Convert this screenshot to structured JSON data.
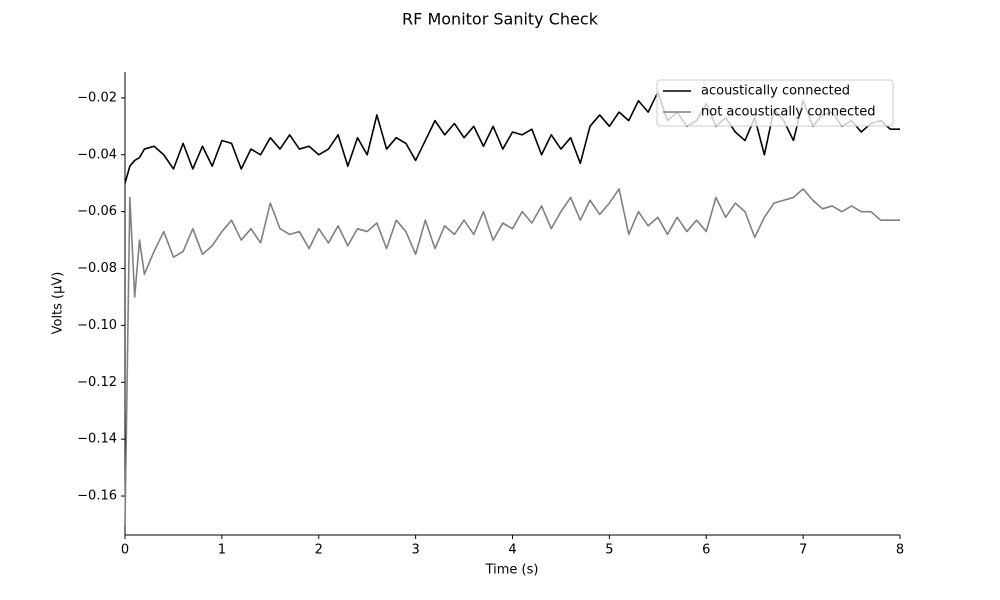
{
  "chart_data": {
    "type": "line",
    "title": "RF Monitor Sanity Check",
    "xlabel": "Time (s)",
    "ylabel": "Volts (μV)",
    "x": [
      0,
      0.05,
      0.1,
      0.15,
      0.2,
      0.3,
      0.4,
      0.5,
      0.6,
      0.7,
      0.8,
      0.9,
      1.0,
      1.1,
      1.2,
      1.3,
      1.4,
      1.5,
      1.6,
      1.7,
      1.8,
      1.9,
      2.0,
      2.1,
      2.2,
      2.3,
      2.4,
      2.5,
      2.6,
      2.7,
      2.8,
      2.9,
      3.0,
      3.1,
      3.2,
      3.3,
      3.4,
      3.5,
      3.6,
      3.7,
      3.8,
      3.9,
      4.0,
      4.1,
      4.2,
      4.3,
      4.4,
      4.5,
      4.6,
      4.7,
      4.8,
      4.9,
      5.0,
      5.1,
      5.2,
      5.3,
      5.4,
      5.5,
      5.6,
      5.7,
      5.8,
      5.9,
      6.0,
      6.1,
      6.2,
      6.3,
      6.4,
      6.5,
      6.6,
      6.7,
      6.8,
      6.9,
      7.0,
      7.1,
      7.2,
      7.3,
      7.4,
      7.5,
      7.6,
      7.7,
      7.8,
      7.9,
      8.0
    ],
    "series": [
      {
        "name": "acoustically connected",
        "color": "#000000",
        "values": [
          -0.05,
          -0.044,
          -0.042,
          -0.041,
          -0.038,
          -0.037,
          -0.04,
          -0.045,
          -0.036,
          -0.045,
          -0.037,
          -0.044,
          -0.035,
          -0.036,
          -0.045,
          -0.038,
          -0.04,
          -0.034,
          -0.038,
          -0.033,
          -0.038,
          -0.037,
          -0.04,
          -0.038,
          -0.033,
          -0.044,
          -0.034,
          -0.04,
          -0.026,
          -0.038,
          -0.034,
          -0.036,
          -0.042,
          -0.035,
          -0.028,
          -0.033,
          -0.029,
          -0.034,
          -0.03,
          -0.037,
          -0.03,
          -0.038,
          -0.032,
          -0.033,
          -0.031,
          -0.04,
          -0.033,
          -0.038,
          -0.034,
          -0.043,
          -0.03,
          -0.026,
          -0.03,
          -0.025,
          -0.028,
          -0.021,
          -0.025,
          -0.018,
          -0.028,
          -0.025,
          -0.03,
          -0.028,
          -0.022,
          -0.03,
          -0.027,
          -0.032,
          -0.035,
          -0.027,
          -0.04,
          -0.024,
          -0.028,
          -0.035,
          -0.021,
          -0.03,
          -0.026,
          -0.025,
          -0.03,
          -0.028,
          -0.032,
          -0.029,
          -0.028,
          -0.031,
          -0.031
        ]
      },
      {
        "name": "not acoustically connected",
        "color": "#808080",
        "values": [
          -0.17,
          -0.055,
          -0.09,
          -0.07,
          -0.082,
          -0.074,
          -0.067,
          -0.076,
          -0.074,
          -0.066,
          -0.075,
          -0.072,
          -0.067,
          -0.063,
          -0.07,
          -0.066,
          -0.071,
          -0.057,
          -0.066,
          -0.068,
          -0.067,
          -0.073,
          -0.066,
          -0.071,
          -0.065,
          -0.072,
          -0.066,
          -0.067,
          -0.064,
          -0.073,
          -0.063,
          -0.067,
          -0.075,
          -0.063,
          -0.073,
          -0.065,
          -0.068,
          -0.063,
          -0.068,
          -0.06,
          -0.07,
          -0.064,
          -0.066,
          -0.06,
          -0.064,
          -0.058,
          -0.066,
          -0.06,
          -0.055,
          -0.063,
          -0.056,
          -0.061,
          -0.057,
          -0.052,
          -0.068,
          -0.06,
          -0.065,
          -0.062,
          -0.068,
          -0.062,
          -0.067,
          -0.063,
          -0.067,
          -0.055,
          -0.062,
          -0.057,
          -0.06,
          -0.069,
          -0.062,
          -0.057,
          -0.056,
          -0.055,
          -0.052,
          -0.056,
          -0.059,
          -0.058,
          -0.06,
          -0.058,
          -0.06,
          -0.06,
          -0.063,
          -0.063,
          -0.063
        ]
      }
    ],
    "xlim": [
      0,
      8
    ],
    "xticks": [
      0,
      1,
      2,
      3,
      4,
      5,
      6,
      7,
      8
    ],
    "ylim": [
      -0.1737,
      -0.0109
    ],
    "yticks": [
      {
        "value": -0.16,
        "label": "−0.16"
      },
      {
        "value": -0.14,
        "label": "−0.14"
      },
      {
        "value": -0.12,
        "label": "−0.12"
      },
      {
        "value": -0.1,
        "label": "−0.10"
      },
      {
        "value": -0.08,
        "label": "−0.08"
      },
      {
        "value": -0.06,
        "label": "−0.06"
      },
      {
        "value": -0.04,
        "label": "−0.04"
      },
      {
        "value": -0.02,
        "label": "−0.02"
      }
    ],
    "legend": "upper right"
  }
}
